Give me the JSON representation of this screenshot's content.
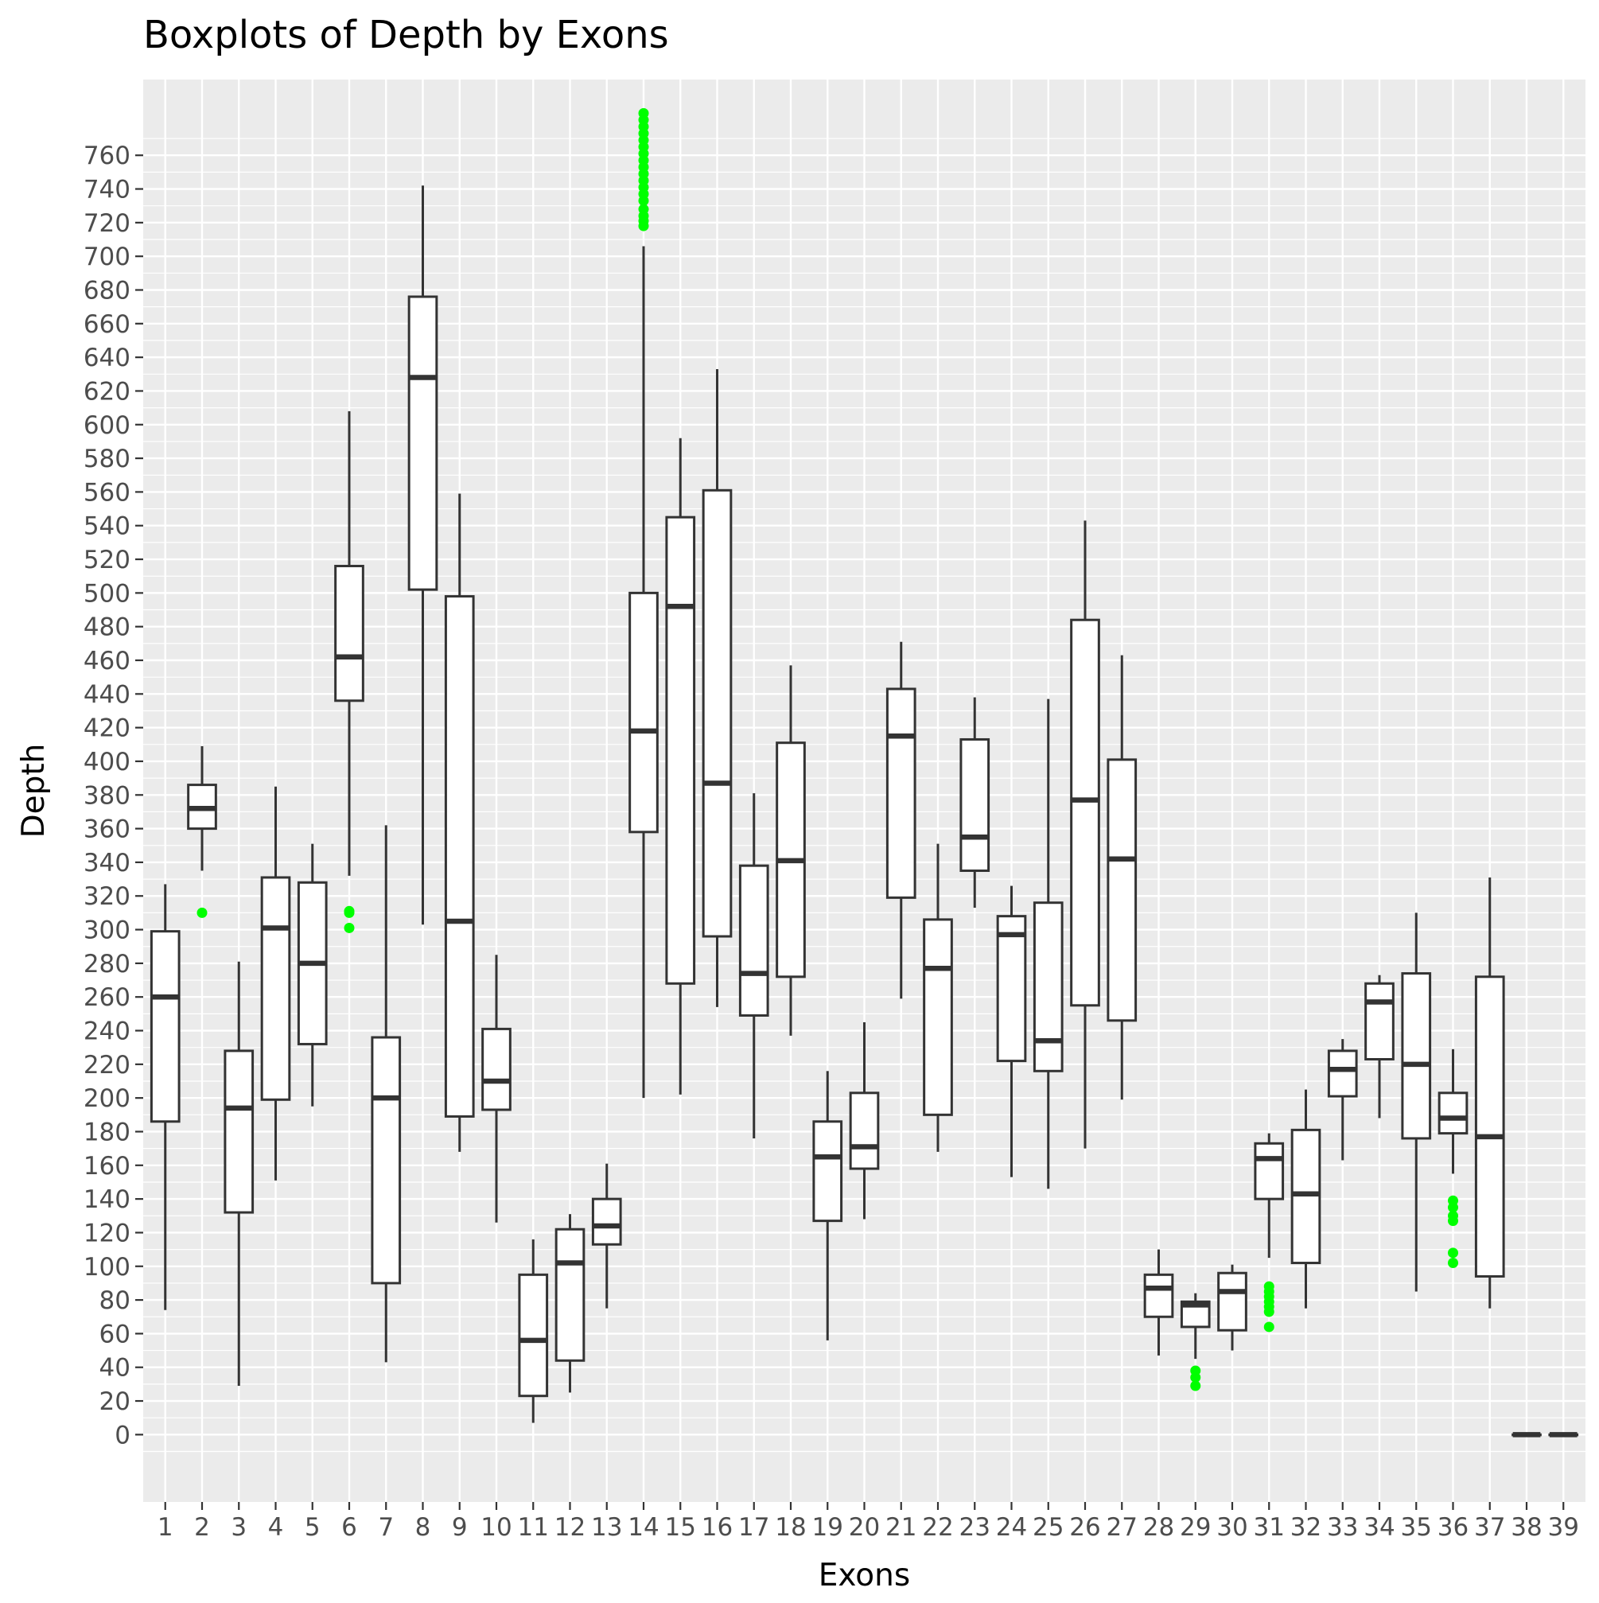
{
  "chart_data": {
    "type": "boxplot",
    "title": "Boxplots of Depth by Exons",
    "xlabel": "Exons",
    "ylabel": "Depth",
    "ylim": [
      -40,
      805
    ],
    "yticks": [
      0,
      20,
      40,
      60,
      80,
      100,
      120,
      140,
      160,
      180,
      200,
      220,
      240,
      260,
      280,
      300,
      320,
      340,
      360,
      380,
      400,
      420,
      440,
      460,
      480,
      500,
      520,
      540,
      560,
      580,
      600,
      620,
      640,
      660,
      680,
      700,
      720,
      740,
      760
    ],
    "categories": [
      "1",
      "2",
      "3",
      "4",
      "5",
      "6",
      "7",
      "8",
      "9",
      "10",
      "11",
      "12",
      "13",
      "14",
      "15",
      "16",
      "17",
      "18",
      "19",
      "20",
      "21",
      "22",
      "23",
      "24",
      "25",
      "26",
      "27",
      "28",
      "29",
      "30",
      "31",
      "32",
      "33",
      "34",
      "35",
      "36",
      "37",
      "38",
      "39"
    ],
    "boxes": [
      {
        "exon": "1",
        "min": 74,
        "q1": 186,
        "median": 260,
        "q3": 299,
        "max": 327,
        "outliers": []
      },
      {
        "exon": "2",
        "min": 335,
        "q1": 360,
        "median": 372,
        "q3": 386,
        "max": 409,
        "outliers": [
          310
        ]
      },
      {
        "exon": "3",
        "min": 29,
        "q1": 132,
        "median": 194,
        "q3": 228,
        "max": 281,
        "outliers": []
      },
      {
        "exon": "4",
        "min": 151,
        "q1": 199,
        "median": 301,
        "q3": 331,
        "max": 385,
        "outliers": []
      },
      {
        "exon": "5",
        "min": 195,
        "q1": 232,
        "median": 280,
        "q3": 328,
        "max": 351,
        "outliers": []
      },
      {
        "exon": "6",
        "min": 332,
        "q1": 436,
        "median": 462,
        "q3": 516,
        "max": 608,
        "outliers": [
          301,
          310,
          311
        ]
      },
      {
        "exon": "7",
        "min": 43,
        "q1": 90,
        "median": 200,
        "q3": 236,
        "max": 362,
        "outliers": []
      },
      {
        "exon": "8",
        "min": 303,
        "q1": 502,
        "median": 628,
        "q3": 676,
        "max": 742,
        "outliers": []
      },
      {
        "exon": "9",
        "min": 168,
        "q1": 189,
        "median": 305,
        "q3": 498,
        "max": 559,
        "outliers": []
      },
      {
        "exon": "10",
        "min": 126,
        "q1": 193,
        "median": 210,
        "q3": 241,
        "max": 285,
        "outliers": []
      },
      {
        "exon": "11",
        "min": 7,
        "q1": 23,
        "median": 56,
        "q3": 95,
        "max": 116,
        "outliers": []
      },
      {
        "exon": "12",
        "min": 25,
        "q1": 44,
        "median": 102,
        "q3": 122,
        "max": 131,
        "outliers": []
      },
      {
        "exon": "13",
        "min": 75,
        "q1": 113,
        "median": 124,
        "q3": 140,
        "max": 161,
        "outliers": []
      },
      {
        "exon": "14",
        "min": 200,
        "q1": 358,
        "median": 418,
        "q3": 500,
        "max": 706,
        "outliers": [
          718,
          721,
          724,
          728,
          733,
          737,
          741,
          745,
          749,
          753,
          757,
          761,
          765,
          769,
          773,
          777,
          781,
          785
        ]
      },
      {
        "exon": "15",
        "min": 202,
        "q1": 268,
        "median": 492,
        "q3": 545,
        "max": 592,
        "outliers": []
      },
      {
        "exon": "16",
        "min": 254,
        "q1": 296,
        "median": 387,
        "q3": 561,
        "max": 633,
        "outliers": []
      },
      {
        "exon": "17",
        "min": 176,
        "q1": 249,
        "median": 274,
        "q3": 338,
        "max": 381,
        "outliers": []
      },
      {
        "exon": "18",
        "min": 237,
        "q1": 272,
        "median": 341,
        "q3": 411,
        "max": 457,
        "outliers": []
      },
      {
        "exon": "19",
        "min": 56,
        "q1": 127,
        "median": 165,
        "q3": 186,
        "max": 216,
        "outliers": []
      },
      {
        "exon": "20",
        "min": 128,
        "q1": 158,
        "median": 171,
        "q3": 203,
        "max": 245,
        "outliers": []
      },
      {
        "exon": "21",
        "min": 259,
        "q1": 319,
        "median": 415,
        "q3": 443,
        "max": 471,
        "outliers": []
      },
      {
        "exon": "22",
        "min": 168,
        "q1": 190,
        "median": 277,
        "q3": 306,
        "max": 351,
        "outliers": []
      },
      {
        "exon": "23",
        "min": 313,
        "q1": 335,
        "median": 355,
        "q3": 413,
        "max": 438,
        "outliers": []
      },
      {
        "exon": "24",
        "min": 153,
        "q1": 222,
        "median": 297,
        "q3": 308,
        "max": 326,
        "outliers": []
      },
      {
        "exon": "25",
        "min": 146,
        "q1": 216,
        "median": 234,
        "q3": 316,
        "max": 437,
        "outliers": []
      },
      {
        "exon": "26",
        "min": 170,
        "q1": 255,
        "median": 377,
        "q3": 484,
        "max": 543,
        "outliers": []
      },
      {
        "exon": "27",
        "min": 199,
        "q1": 246,
        "median": 342,
        "q3": 401,
        "max": 463,
        "outliers": []
      },
      {
        "exon": "28",
        "min": 47,
        "q1": 70,
        "median": 87,
        "q3": 95,
        "max": 110,
        "outliers": []
      },
      {
        "exon": "29",
        "min": 45,
        "q1": 64,
        "median": 77,
        "q3": 79,
        "max": 84,
        "outliers": [
          29,
          34,
          38
        ]
      },
      {
        "exon": "30",
        "min": 50,
        "q1": 62,
        "median": 85,
        "q3": 96,
        "max": 101,
        "outliers": []
      },
      {
        "exon": "31",
        "min": 105,
        "q1": 140,
        "median": 164,
        "q3": 173,
        "max": 179,
        "outliers": [
          64,
          73,
          76,
          79,
          82,
          85,
          88
        ]
      },
      {
        "exon": "32",
        "min": 75,
        "q1": 102,
        "median": 143,
        "q3": 181,
        "max": 205,
        "outliers": []
      },
      {
        "exon": "33",
        "min": 163,
        "q1": 201,
        "median": 217,
        "q3": 228,
        "max": 235,
        "outliers": []
      },
      {
        "exon": "34",
        "min": 188,
        "q1": 223,
        "median": 257,
        "q3": 268,
        "max": 273,
        "outliers": []
      },
      {
        "exon": "35",
        "min": 85,
        "q1": 176,
        "median": 220,
        "q3": 274,
        "max": 310,
        "outliers": []
      },
      {
        "exon": "36",
        "min": 155,
        "q1": 179,
        "median": 188,
        "q3": 203,
        "max": 229,
        "outliers": [
          102,
          108,
          127,
          130,
          135,
          139
        ]
      },
      {
        "exon": "37",
        "min": 75,
        "q1": 94,
        "median": 177,
        "q3": 272,
        "max": 331,
        "outliers": []
      },
      {
        "exon": "38",
        "min": 0,
        "q1": 0,
        "median": 0,
        "q3": 0,
        "max": 0,
        "outliers": []
      },
      {
        "exon": "39",
        "min": 0,
        "q1": 0,
        "median": 0,
        "q3": 0,
        "max": 0,
        "outliers": []
      }
    ],
    "colors": {
      "panel_background": "#ebebeb",
      "grid": "#ffffff",
      "box_fill": "#ffffff",
      "box_line": "#333333",
      "outlier": "#00ff00",
      "tick_text": "#4d4d4d"
    },
    "grid": true,
    "legend": "none"
  }
}
